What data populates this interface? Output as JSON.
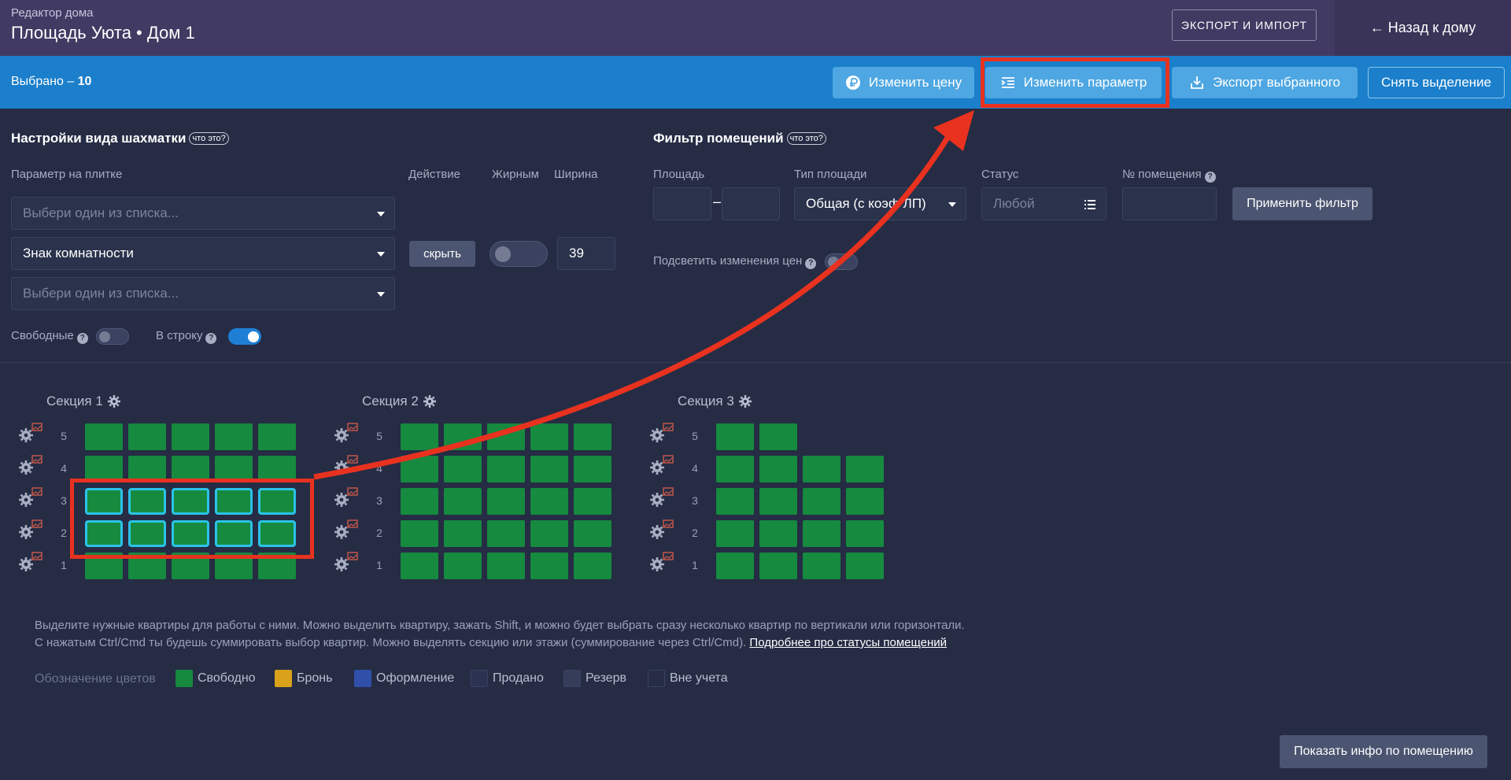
{
  "header": {
    "subtitle": "Редактор дома",
    "title": "Площадь Уюта • Дом 1",
    "export_import_label": "Экспорт и импорт",
    "back_label": "← Назад к дому"
  },
  "selection_bar": {
    "selected_prefix": "Выбрано – ",
    "selected_count": "10",
    "change_price_label": "Изменить цену",
    "change_param_label": "Изменить параметр",
    "export_selected_label": "Экспорт выбранного",
    "clear_selection_label": "Снять выделение"
  },
  "view_settings": {
    "title": "Настройки вида шахматки",
    "what_label": "что это?",
    "param_label": "Параметр на плитке",
    "action_label": "Действие",
    "bold_label": "Жирным",
    "width_label": "Ширина",
    "select1_placeholder": "Выбери один из списка...",
    "select2_value": "Знак комнатности",
    "select3_placeholder": "Выбери один из списка...",
    "hide_button_label": "скрыть",
    "width_value": "39",
    "free_label": "Свободные",
    "inline_label": "В строку"
  },
  "filter": {
    "title": "Фильтр помещений",
    "what_label": "что это?",
    "area_label": "Площадь",
    "area_separator": "–",
    "area_type_label": "Тип площади",
    "area_type_value": "Общая (с коэф ЛП)",
    "status_label": "Статус",
    "status_placeholder": "Любой",
    "room_no_label": "№ помещения",
    "apply_label": "Применить фильтр",
    "highlight_changes_label": "Подсветить изменения цен"
  },
  "sections": [
    {
      "name": "Секция 1",
      "floors": [
        5,
        4,
        3,
        2,
        1
      ],
      "tiles_per_floor": [
        5,
        5,
        5,
        5,
        5
      ],
      "selected_floors": [
        3,
        2
      ]
    },
    {
      "name": "Секция 2",
      "floors": [
        5,
        4,
        3,
        2,
        1
      ],
      "tiles_per_floor": [
        5,
        5,
        5,
        5,
        5
      ],
      "selected_floors": []
    },
    {
      "name": "Секция 3",
      "floors": [
        5,
        4,
        3,
        2,
        1
      ],
      "tiles_per_floor": [
        2,
        4,
        4,
        4,
        4
      ],
      "selected_floors": []
    }
  ],
  "hint": {
    "line1": "Выделите нужные квартиры для работы с ними. Можно выделить квартиру, зажать Shift, и можно будет выбрать сразу несколько квартир по вертикали или горизонтали.",
    "line2": "С нажатым Ctrl/Cmd ты будешь суммировать выбор квартир. Можно выделять секцию или этажи (суммирование через Ctrl/Cmd).",
    "link": "Подробнее про статусы помещений"
  },
  "legend": {
    "title": "Обозначение цветов",
    "items": [
      {
        "label": "Свободно",
        "color": "#168a3f"
      },
      {
        "label": "Бронь",
        "color": "#d9a21a"
      },
      {
        "label": "Оформление",
        "color": "#2f4fa8"
      },
      {
        "label": "Продано",
        "color": "#2c3350"
      },
      {
        "label": "Резерв",
        "color": "#353d59"
      },
      {
        "label": "Вне учета",
        "color": "#252c44"
      }
    ]
  },
  "info_button_label": "Показать инфо по помещению",
  "colors": {
    "header_bg": "#413a63",
    "selection_bar_bg": "#1b7fcb",
    "page_bg": "#252c44",
    "tile_free": "#168a3f",
    "tile_selected_border": "#2bc3e8",
    "annotation": "#e8321f"
  }
}
